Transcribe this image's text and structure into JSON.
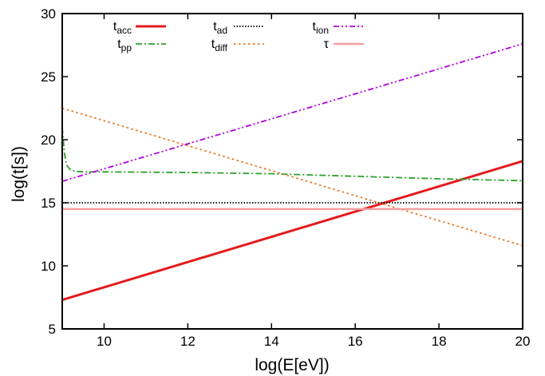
{
  "chart_data": {
    "type": "line",
    "title": "",
    "xlabel": "log(E[eV])",
    "ylabel": "log(t[s])",
    "xlim": [
      9,
      20
    ],
    "ylim": [
      5,
      30
    ],
    "x_ticks": [
      10,
      12,
      14,
      16,
      18,
      20
    ],
    "y_ticks": [
      5,
      10,
      15,
      20,
      25,
      30
    ],
    "x_tick_labels": [
      "10",
      "12",
      "14",
      "16",
      "18",
      "20"
    ],
    "y_tick_labels": [
      "5",
      "10",
      "15",
      "20",
      "25",
      "30"
    ],
    "grid": false,
    "legend_placement": "top",
    "series": [
      {
        "name": "t_acc",
        "label_main": "t",
        "label_sub": "acc",
        "color": "#e41a1c",
        "style": "solid",
        "x": [
          9,
          20
        ],
        "y": [
          7.3,
          18.3
        ]
      },
      {
        "name": "t_pp",
        "label_main": "t",
        "label_sub": "pp",
        "color": "#2ca02c",
        "style": "dashdot",
        "x": [
          9.0,
          9.05,
          9.1,
          9.2,
          9.3,
          9.5,
          10,
          12,
          14,
          16,
          18,
          20
        ],
        "y": [
          21.0,
          19.0,
          18.0,
          17.6,
          17.5,
          17.45,
          17.45,
          17.4,
          17.3,
          17.1,
          16.9,
          16.75
        ]
      },
      {
        "name": "t_ad",
        "label_main": "t",
        "label_sub": "ad",
        "color": "#000000",
        "style": "dotted",
        "x": [
          9,
          20
        ],
        "y": [
          15.0,
          15.0
        ]
      },
      {
        "name": "t_diff",
        "label_main": "t",
        "label_sub": "diff",
        "color": "#e87722",
        "style": "dotted-coarse",
        "x": [
          9,
          20
        ],
        "y": [
          22.5,
          11.6
        ]
      },
      {
        "name": "t_ion",
        "label_main": "t",
        "label_sub": "ion",
        "color": "#b000e0",
        "style": "dashdotdot",
        "x": [
          9,
          20
        ],
        "y": [
          16.7,
          27.6
        ]
      },
      {
        "name": "τ",
        "label_main": "τ",
        "label_sub": "",
        "color": "#f4a0a0",
        "style": "solid",
        "x": [
          9,
          20
        ],
        "y": [
          14.5,
          14.5
        ]
      }
    ]
  }
}
